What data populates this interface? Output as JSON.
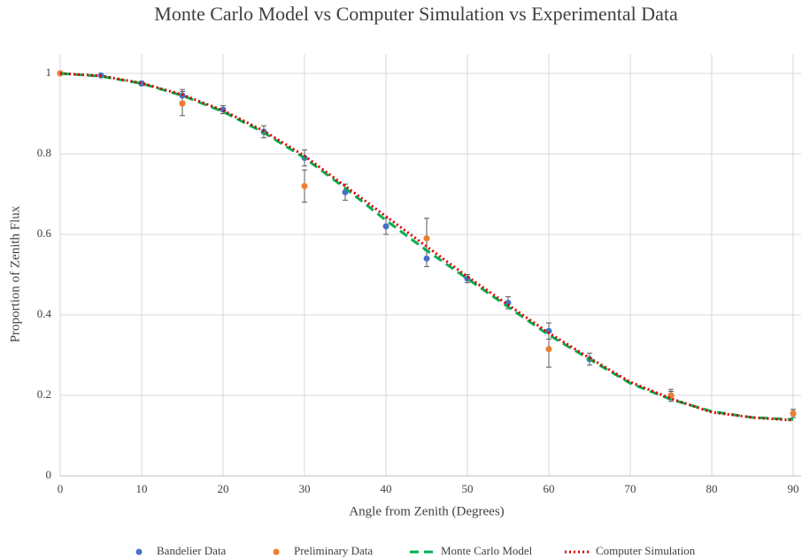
{
  "chart_data": {
    "type": "scatter",
    "title": "Monte Carlo Model vs Computer Simulation vs Experimental Data",
    "x_label": "Angle from Zenith (Degrees)",
    "y_label": "Proportion of Zenith Flux",
    "xlim": [
      0,
      90
    ],
    "xticks": [
      0,
      10,
      20,
      30,
      40,
      50,
      60,
      70,
      80,
      90
    ],
    "ylim": [
      0,
      1
    ],
    "yticks": [
      0,
      0.2,
      0.4,
      0.6,
      0.8,
      1
    ],
    "grid": true,
    "legend": "bottom",
    "series": [
      {
        "name": "Bandelier Data",
        "color": "#4472c4",
        "style": "marker",
        "x": [
          0,
          5,
          10,
          15,
          20,
          25,
          30,
          35,
          40,
          45,
          50,
          55,
          60,
          65,
          75,
          90
        ],
        "values": [
          1.0,
          0.995,
          0.975,
          0.945,
          0.91,
          0.855,
          0.79,
          0.705,
          0.62,
          0.54,
          0.49,
          0.43,
          0.36,
          0.29,
          0.2,
          0.155
        ],
        "errors": [
          0,
          0,
          0.005,
          0.015,
          0.01,
          0.015,
          0.02,
          0.02,
          0.02,
          0.02,
          0.01,
          0.015,
          0.02,
          0.015,
          0.01,
          0.01
        ]
      },
      {
        "name": "Preliminary Data",
        "color": "#ed7d31",
        "style": "marker",
        "x": [
          0,
          15,
          30,
          45,
          60,
          75,
          90
        ],
        "values": [
          1.0,
          0.925,
          0.72,
          0.59,
          0.315,
          0.2,
          0.155
        ],
        "errors": [
          0,
          0.03,
          0.04,
          0.05,
          0.045,
          0.015,
          0.01
        ]
      },
      {
        "name": "Monte Carlo Model",
        "color": "#00b050",
        "style": "dashed",
        "x": [
          0,
          5,
          10,
          15,
          20,
          25,
          30,
          35,
          40,
          45,
          50,
          55,
          60,
          65,
          70,
          75,
          80,
          85,
          90
        ],
        "values": [
          1.0,
          0.993,
          0.975,
          0.945,
          0.905,
          0.853,
          0.79,
          0.715,
          0.635,
          0.56,
          0.49,
          0.42,
          0.35,
          0.29,
          0.23,
          0.19,
          0.16,
          0.145,
          0.14
        ]
      },
      {
        "name": "Computer Simulation",
        "color": "#e00000",
        "style": "dotted",
        "x": [
          0,
          5,
          10,
          15,
          20,
          25,
          30,
          35,
          40,
          45,
          50,
          55,
          60,
          65,
          70,
          75,
          80,
          85,
          90
        ],
        "values": [
          1.0,
          0.994,
          0.976,
          0.947,
          0.908,
          0.857,
          0.795,
          0.72,
          0.645,
          0.57,
          0.495,
          0.425,
          0.355,
          0.293,
          0.233,
          0.192,
          0.158,
          0.145,
          0.138
        ]
      }
    ]
  }
}
